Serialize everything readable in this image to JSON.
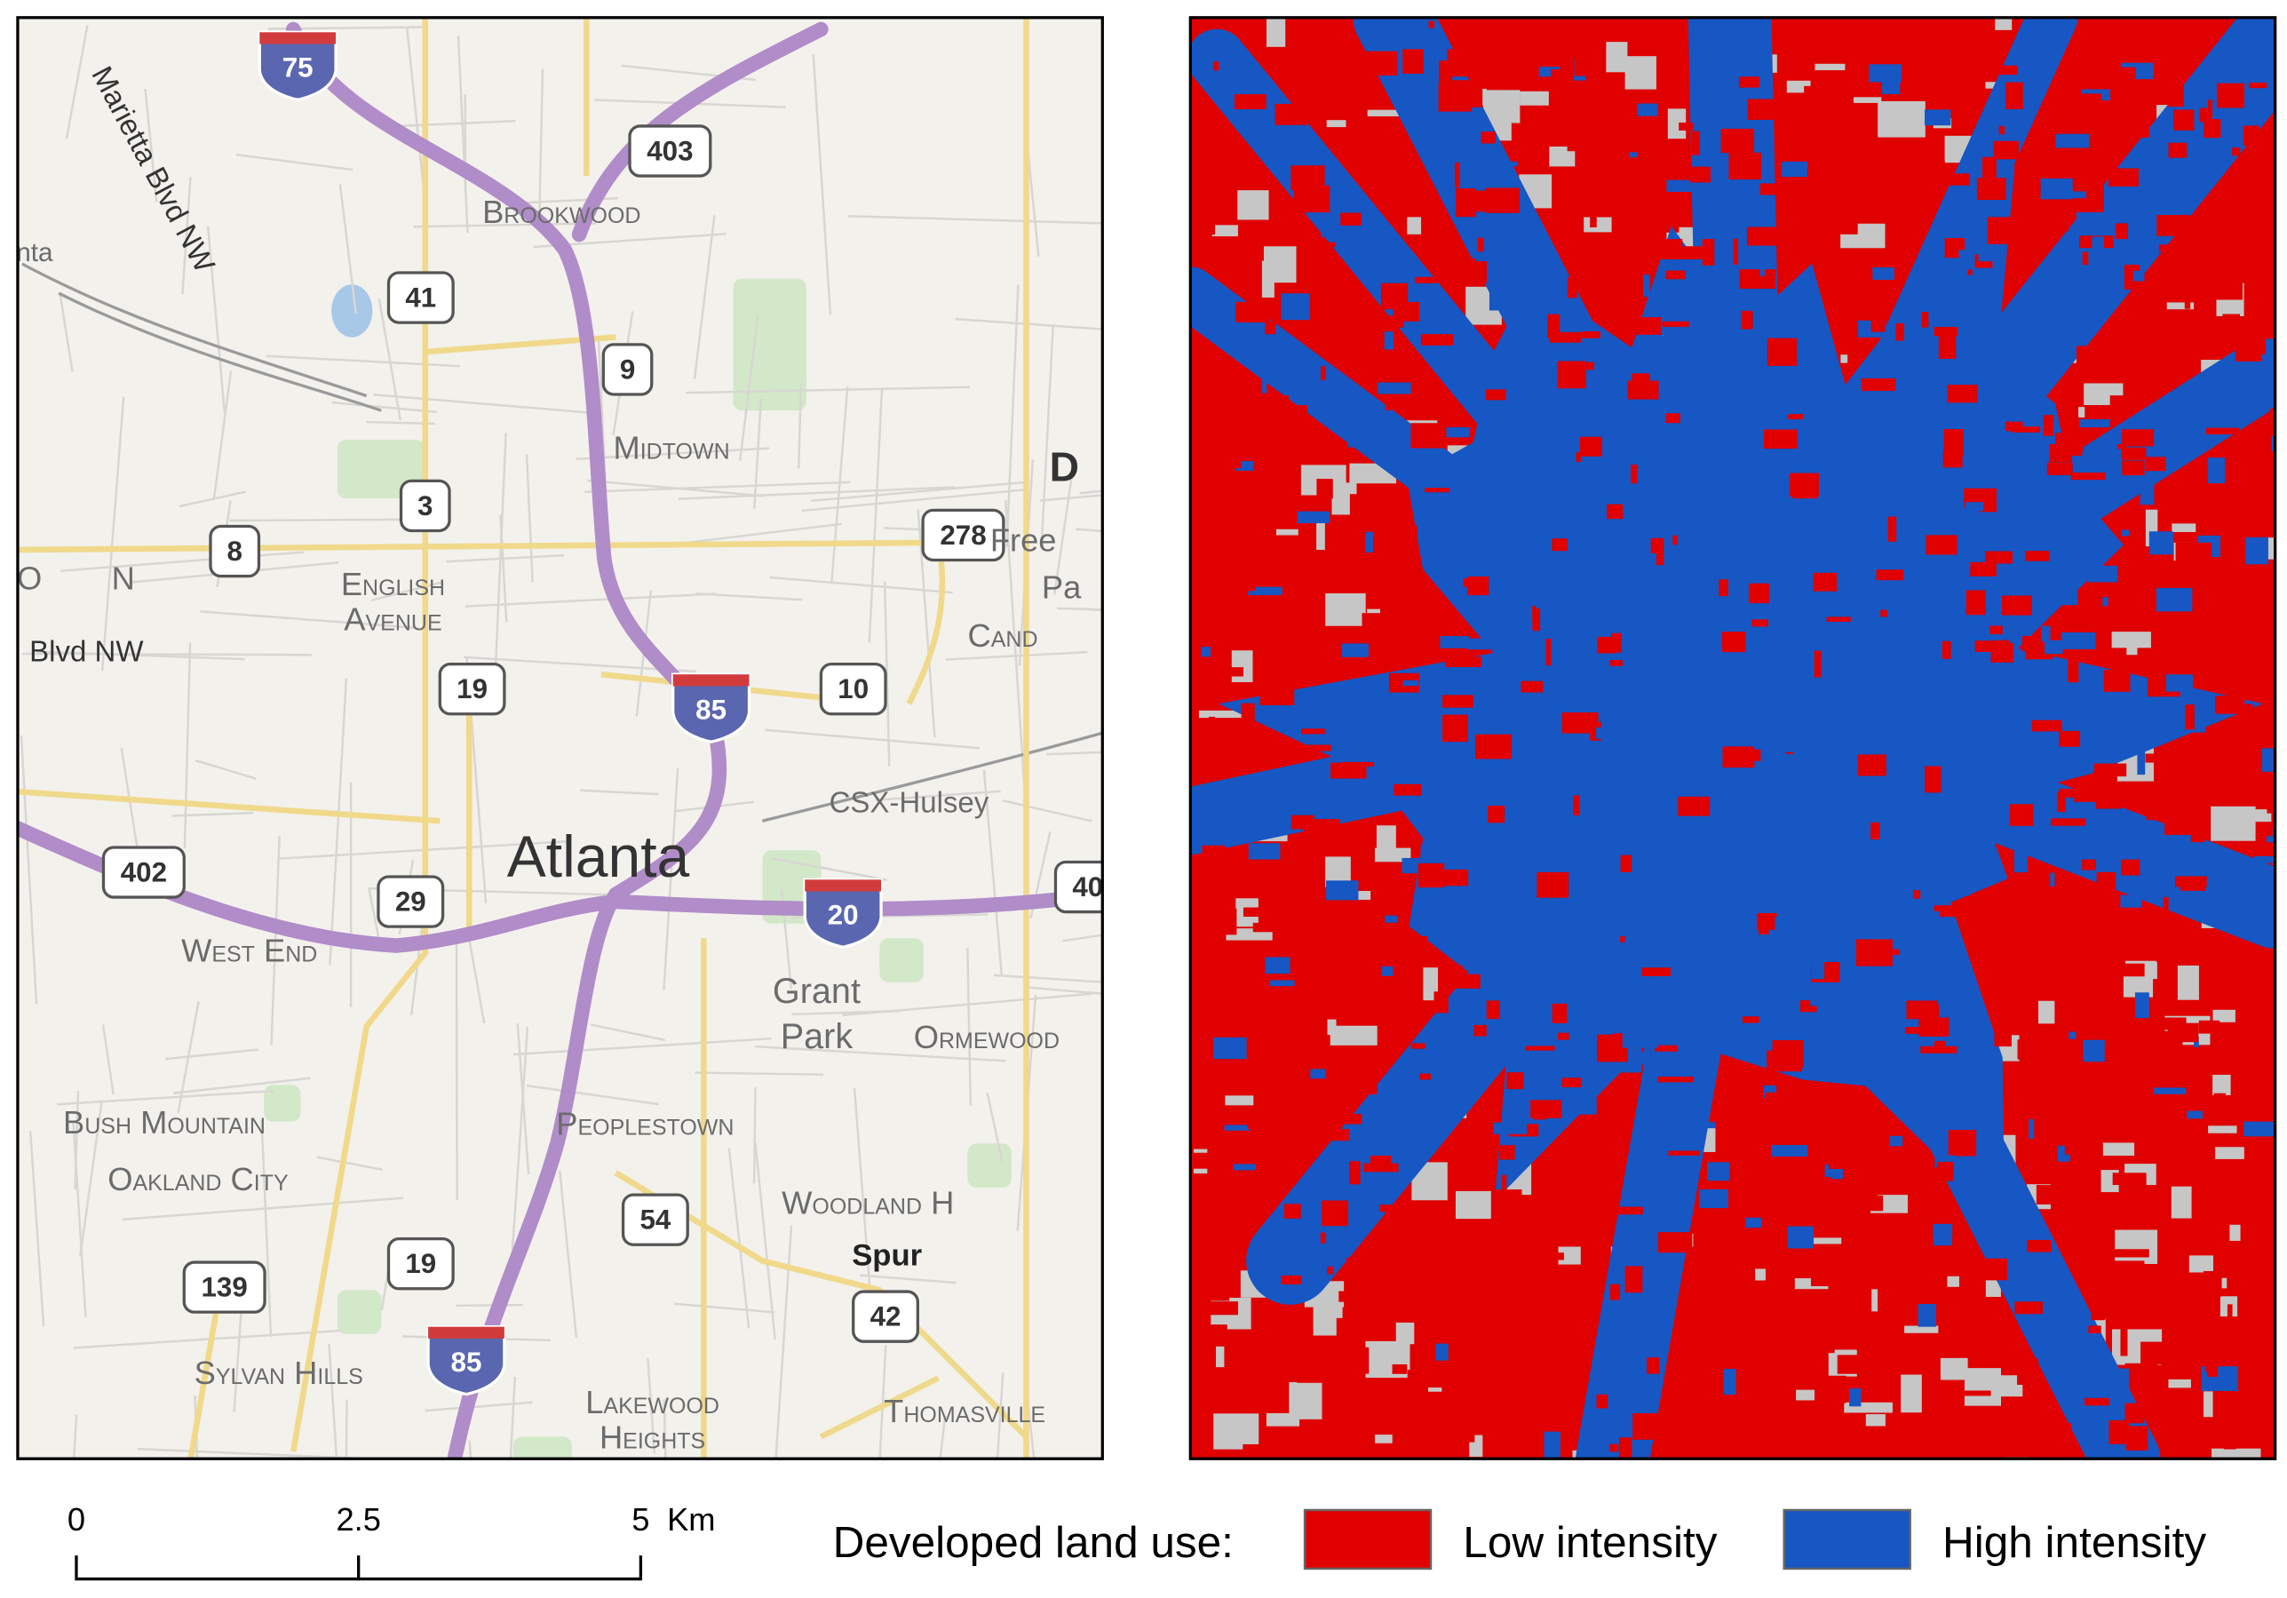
{
  "map": {
    "interstate_shields": [
      "75",
      "85",
      "85",
      "20"
    ],
    "route_shields": [
      "403",
      "41",
      "9",
      "3",
      "8",
      "278",
      "19",
      "10",
      "402",
      "29",
      "54",
      "19",
      "139",
      "42",
      "40"
    ],
    "place_labels": [
      "Brookwood",
      "Midtown",
      "English",
      "Avenue",
      "West End",
      "Atlanta",
      "CSX-Hulsey",
      "Grant",
      "Park",
      "Ormewood",
      "Bush Mountain",
      "Oakland City",
      "Peoplestown",
      "Woodland H",
      "Spur",
      "Sylvan Hills",
      "Lakewood",
      "Heights",
      "Thomasville",
      "Cand",
      "Free",
      "Pa",
      "D",
      "tlanta",
      "N",
      "O"
    ],
    "road_labels": [
      "Marietta Blvd NW",
      "Blvd NW"
    ]
  },
  "scale_bar": {
    "ticks": [
      0,
      2.5,
      {
        "value": 5,
        "label": "5"
      }
    ],
    "unit": "Km"
  },
  "legend": {
    "title": "Developed land use:",
    "items": [
      {
        "name": "Low intensity",
        "color": "#e00000"
      },
      {
        "name": "High intensity",
        "color": "#1657c4"
      }
    ]
  }
}
